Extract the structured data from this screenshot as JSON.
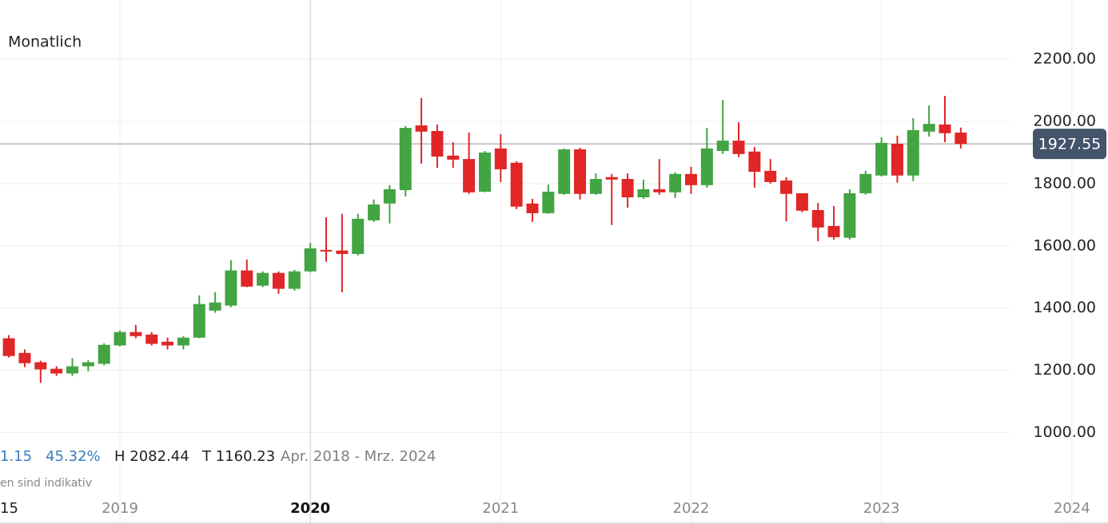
{
  "chart_data": {
    "type": "candlestick",
    "title": "Monatlich",
    "x": [
      2018.4167,
      2018.5,
      2018.5833,
      2018.6667,
      2018.75,
      2018.8333,
      2018.9167,
      2019,
      2019.0833,
      2019.1667,
      2019.25,
      2019.3333,
      2019.4167,
      2019.5,
      2019.5833,
      2019.6667,
      2019.75,
      2019.8333,
      2019.9167,
      2020,
      2020.0833,
      2020.1667,
      2020.25,
      2020.3333,
      2020.4167,
      2020.5,
      2020.5833,
      2020.6667,
      2020.75,
      2020.8333,
      2020.9167,
      2021,
      2021.0833,
      2021.1667,
      2021.25,
      2021.3333,
      2021.4167,
      2021.5,
      2021.5833,
      2021.6667,
      2021.75,
      2021.8333,
      2021.9167,
      2022,
      2022.0833,
      2022.1667,
      2022.25,
      2022.3333,
      2022.4167,
      2022.5,
      2022.5833,
      2022.6667,
      2022.75,
      2022.8333,
      2022.9167,
      2023,
      2023.0833,
      2023.1667,
      2023.25,
      2023.3333,
      2023.4167
    ],
    "open": [
      1303,
      1256,
      1226,
      1205,
      1190,
      1213,
      1221,
      1280,
      1323,
      1315,
      1292,
      1280,
      1305,
      1392,
      1408,
      1521,
      1472,
      1513,
      1462,
      1518,
      1587,
      1585,
      1574,
      1682,
      1736,
      1779,
      1987,
      1969,
      1890,
      1879,
      1774,
      1913,
      1867,
      1736,
      1705,
      1767,
      1910,
      1767,
      1821,
      1815,
      1756,
      1782,
      1772,
      1831,
      1795,
      1905,
      1938,
      1903,
      1841,
      1810,
      1769,
      1715,
      1664,
      1626,
      1769,
      1826,
      1928,
      1826,
      1967,
      1990,
      1964
    ],
    "high": [
      1313,
      1267,
      1231,
      1213,
      1239,
      1233,
      1287,
      1328,
      1346,
      1323,
      1305,
      1310,
      1441,
      1451,
      1554,
      1556,
      1518,
      1518,
      1523,
      1610,
      1692,
      1703,
      1703,
      1749,
      1795,
      1985,
      2075,
      1990,
      1933,
      1964,
      1905,
      1959,
      1872,
      1751,
      1797,
      1913,
      1915,
      1833,
      1831,
      1833,
      1813,
      1879,
      1836,
      1854,
      1979,
      2069,
      1997,
      1918,
      1879,
      1821,
      1769,
      1738,
      1728,
      1782,
      1841,
      1949,
      1954,
      2010,
      2051,
      2082,
      1980
    ],
    "low": [
      1241,
      1210,
      1160,
      1182,
      1182,
      1197,
      1216,
      1277,
      1303,
      1280,
      1267,
      1267,
      1303,
      1385,
      1403,
      1467,
      1467,
      1446,
      1456,
      1515,
      1549,
      1451,
      1569,
      1677,
      1672,
      1759,
      1864,
      1851,
      1851,
      1767,
      1772,
      1805,
      1718,
      1677,
      1703,
      1764,
      1749,
      1764,
      1667,
      1723,
      1751,
      1764,
      1754,
      1767,
      1787,
      1895,
      1885,
      1787,
      1800,
      1679,
      1708,
      1615,
      1620,
      1620,
      1764,
      1823,
      1803,
      1808,
      1951,
      1933,
      1913
    ],
    "close": [
      1246,
      1223,
      1203,
      1190,
      1213,
      1226,
      1282,
      1323,
      1310,
      1285,
      1280,
      1305,
      1413,
      1418,
      1521,
      1469,
      1513,
      1462,
      1518,
      1592,
      1582,
      1574,
      1687,
      1733,
      1782,
      1979,
      1967,
      1887,
      1877,
      1772,
      1900,
      1846,
      1726,
      1705,
      1774,
      1910,
      1767,
      1815,
      1813,
      1756,
      1782,
      1772,
      1831,
      1795,
      1913,
      1938,
      1895,
      1838,
      1805,
      1767,
      1713,
      1659,
      1628,
      1769,
      1831,
      1931,
      1826,
      1972,
      1992,
      1962,
      1927.55
    ],
    "up_color": "#43a443",
    "down_color": "#e02626",
    "last_price": 1927.55,
    "xlim": [
      2018.37,
      2024.19
    ],
    "ylim": [
      850,
      2390
    ],
    "xticks": [
      2019,
      2020,
      2021,
      2022,
      2023,
      2024
    ],
    "major_xtick": 2020,
    "x_edge_label": "15",
    "yticks": [
      {
        "value": 1000,
        "label": "1000.00"
      },
      {
        "value": 1200,
        "label": "1200.00"
      },
      {
        "value": 1400,
        "label": "1400.00"
      },
      {
        "value": 1600,
        "label": "1600.00"
      },
      {
        "value": 1800,
        "label": "1800.00"
      },
      {
        "value": 2000,
        "label": "2000.00"
      },
      {
        "value": 2200,
        "label": "2200.00"
      }
    ],
    "grid": true,
    "stats": [
      "1.15",
      "45.32%",
      "H 2082.44",
      "T 1160.23",
      "Apr. 2018 - Mrz. 2024"
    ],
    "disclaimer": "en sind indikativ"
  }
}
